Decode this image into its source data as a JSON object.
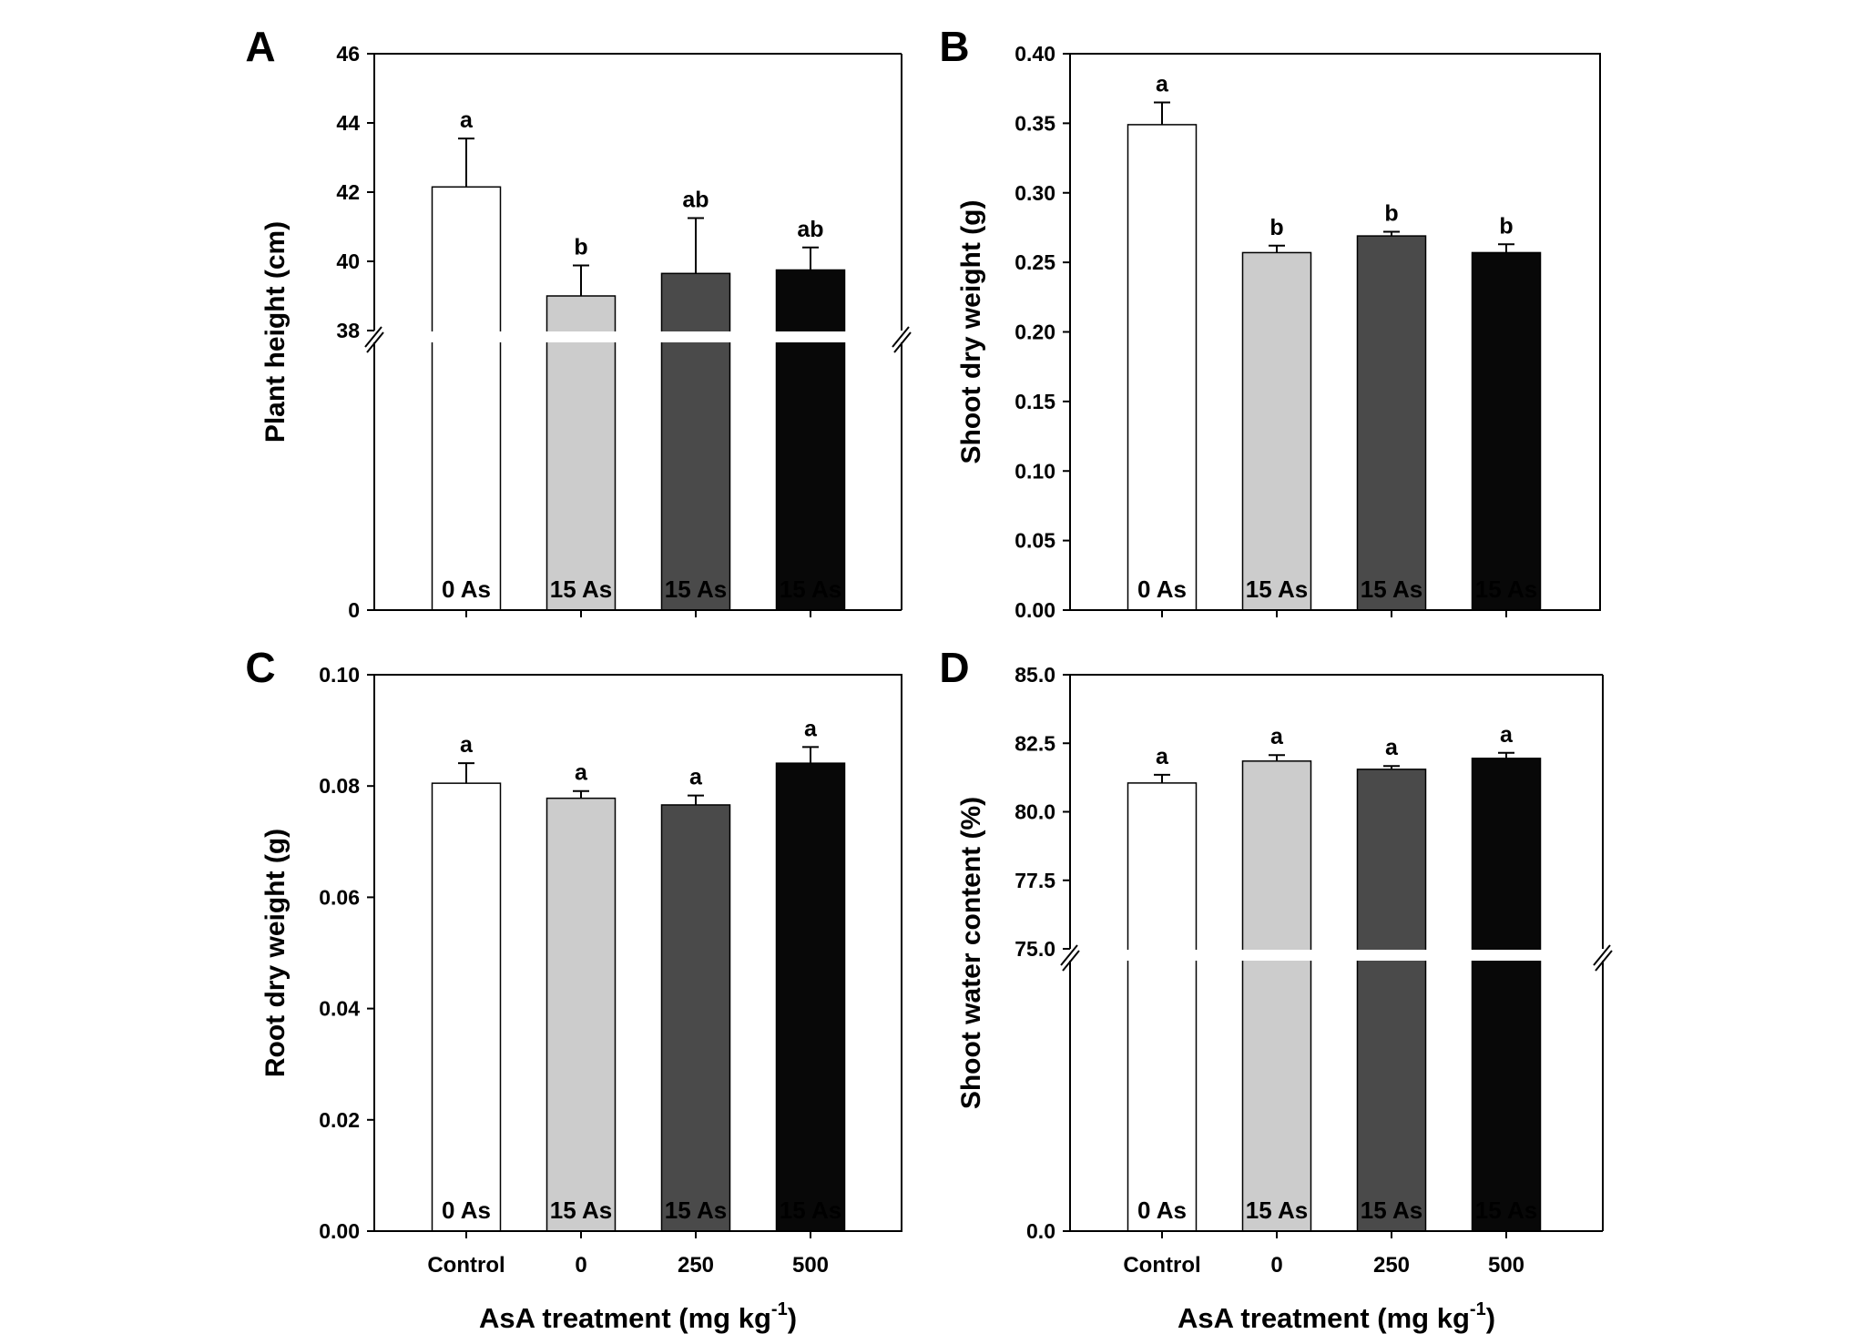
{
  "chart_data": [
    {
      "type": "bar",
      "panel": "A",
      "ylabel": "Plant height (cm)",
      "axis_break": [
        0,
        38
      ],
      "ylim": [
        38,
        46
      ],
      "yticks": [
        "0",
        "38",
        "40",
        "42",
        "44",
        "46"
      ],
      "categories": [
        "Control",
        "0",
        "250",
        "500"
      ],
      "bar_labels": [
        "0 As",
        "15 As",
        "15 As",
        "15 As"
      ],
      "values": [
        42.15,
        39.0,
        39.65,
        39.75
      ],
      "errors": [
        1.4,
        0.88,
        1.6,
        0.65
      ],
      "significance": [
        "a",
        "b",
        "ab",
        "ab"
      ],
      "colors": [
        "#ffffff",
        "#cccccc",
        "#4a4a4a",
        "#080808"
      ],
      "xlabel": ""
    },
    {
      "type": "bar",
      "panel": "B",
      "ylabel": "Shoot dry weight (g)",
      "ylim": [
        0,
        0.4
      ],
      "yticks": [
        "0.00",
        "0.05",
        "0.10",
        "0.15",
        "0.20",
        "0.25",
        "0.30",
        "0.35",
        "0.40"
      ],
      "categories": [
        "Control",
        "0",
        "250",
        "500"
      ],
      "bar_labels": [
        "0 As",
        "15 As",
        "15 As",
        "15 As"
      ],
      "values": [
        0.349,
        0.257,
        0.269,
        0.257
      ],
      "errors": [
        0.016,
        0.005,
        0.003,
        0.006
      ],
      "significance": [
        "a",
        "b",
        "b",
        "b"
      ],
      "colors": [
        "#ffffff",
        "#cccccc",
        "#4a4a4a",
        "#080808"
      ],
      "xlabel": ""
    },
    {
      "type": "bar",
      "panel": "C",
      "ylabel": "Root dry weight (g)",
      "ylim": [
        0,
        0.1
      ],
      "yticks": [
        "0.00",
        "0.02",
        "0.04",
        "0.06",
        "0.08",
        "0.10"
      ],
      "categories": [
        "Control",
        "0",
        "250",
        "500"
      ],
      "bar_labels": [
        "0 As",
        "15 As",
        "15 As",
        "15 As"
      ],
      "values": [
        0.0805,
        0.0778,
        0.0766,
        0.0841
      ],
      "errors": [
        0.0036,
        0.0013,
        0.0017,
        0.0029
      ],
      "significance": [
        "a",
        "a",
        "a",
        "a"
      ],
      "colors": [
        "#ffffff",
        "#cccccc",
        "#4a4a4a",
        "#080808"
      ],
      "xlabel": "AsA treatment (mg kg-1)"
    },
    {
      "type": "bar",
      "panel": "D",
      "ylabel": "Shoot water content (%)",
      "axis_break": [
        0,
        75
      ],
      "ylim": [
        75,
        85
      ],
      "yticks": [
        "0.0",
        "75.0",
        "77.5",
        "80.0",
        "82.5",
        "85.0"
      ],
      "categories": [
        "Control",
        "0",
        "250",
        "500"
      ],
      "bar_labels": [
        "0 As",
        "15 As",
        "15 As",
        "15 As"
      ],
      "values": [
        81.05,
        81.85,
        81.55,
        81.95
      ],
      "errors": [
        0.3,
        0.22,
        0.12,
        0.2
      ],
      "significance": [
        "a",
        "a",
        "a",
        "a"
      ],
      "colors": [
        "#ffffff",
        "#cccccc",
        "#4a4a4a",
        "#080808"
      ],
      "xlabel": "AsA treatment (mg kg-1)"
    }
  ],
  "colors": {
    "axis": "#000000",
    "background": "#ffffff",
    "light_text": "#ffffff",
    "dark_text": "#000000"
  }
}
